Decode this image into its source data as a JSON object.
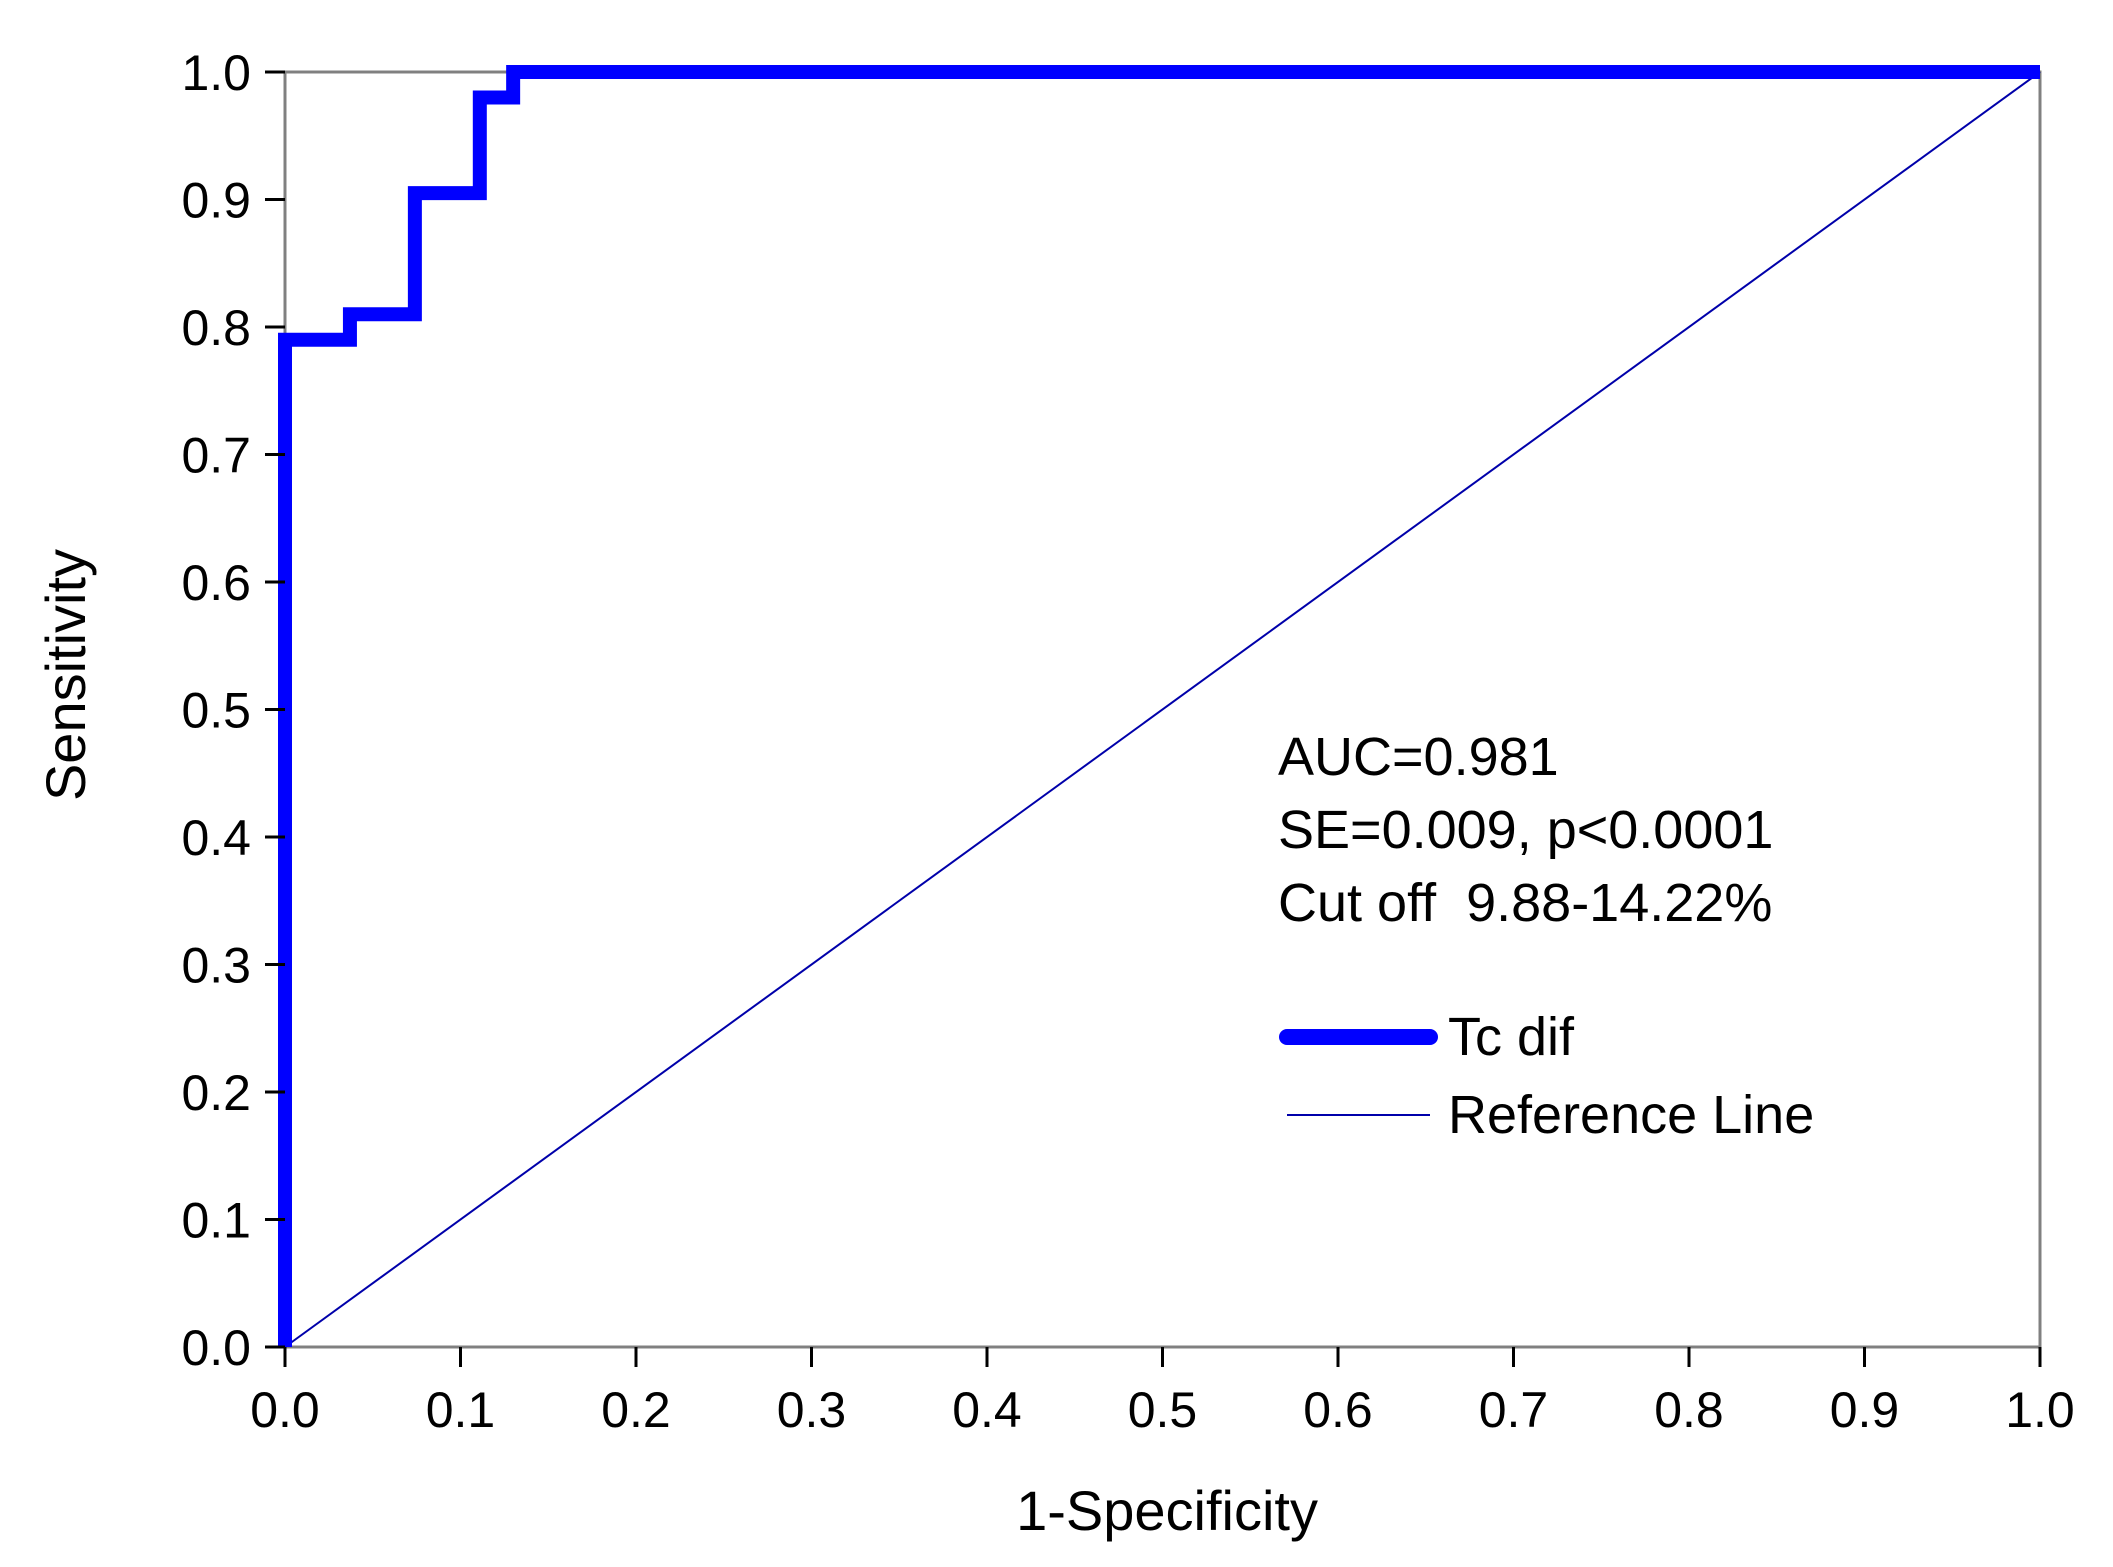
{
  "chart_data": {
    "type": "line",
    "title": "",
    "xlabel": "1-Specificity",
    "ylabel": "Sensitivity",
    "xlim": [
      0,
      1
    ],
    "ylim": [
      0,
      1
    ],
    "xticks": [
      "0.0",
      "0.1",
      "0.2",
      "0.3",
      "0.4",
      "0.5",
      "0.6",
      "0.7",
      "0.8",
      "0.9",
      "1.0"
    ],
    "yticks": [
      "0.0",
      "0.1",
      "0.2",
      "0.3",
      "0.4",
      "0.5",
      "0.6",
      "0.7",
      "0.8",
      "0.9",
      "1.0"
    ],
    "grid": false,
    "series": [
      {
        "name": "Tc dif",
        "color": "#0000ff",
        "x": [
          0,
          0,
          0.037,
          0.037,
          0.074,
          0.074,
          0.111,
          0.111,
          0.13,
          0.13,
          1.0
        ],
        "y": [
          0,
          0.79,
          0.79,
          0.81,
          0.81,
          0.905,
          0.905,
          0.98,
          0.98,
          1.0,
          1.0
        ]
      },
      {
        "name": "Reference Line",
        "color": "#0000aa",
        "x": [
          0,
          1
        ],
        "y": [
          0,
          1
        ]
      }
    ],
    "annotations": [
      "AUC=0.981",
      "SE=0.009, p<0.0001",
      "Cut off  9.88-14.22%"
    ],
    "legend": "inside-right"
  }
}
